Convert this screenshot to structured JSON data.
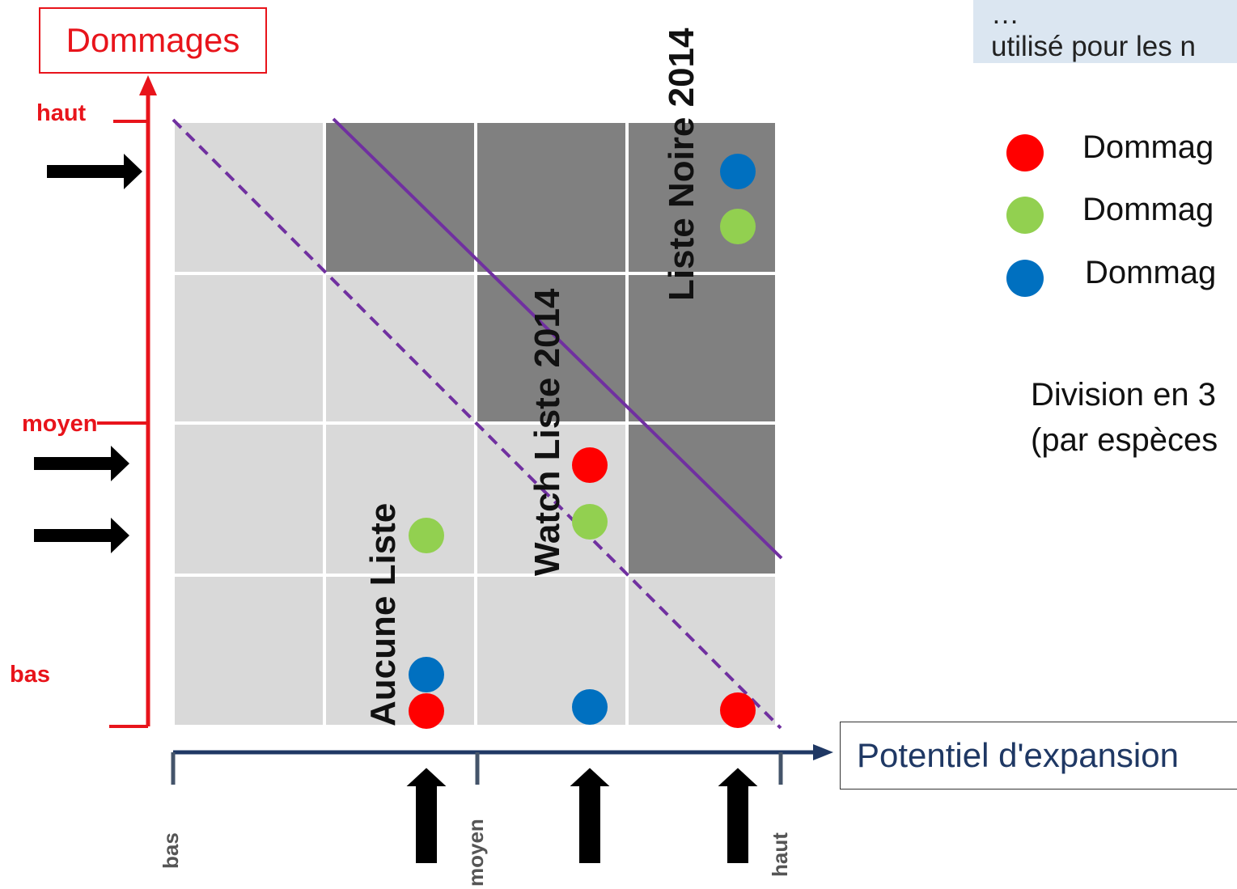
{
  "note": {
    "line1": "… ",
    "line2": "utilisé pour les n"
  },
  "axes": {
    "y_label": "Dommages",
    "x_label": "Potentiel d'expansion",
    "y_ticks": [
      "haut",
      "moyen",
      "bas"
    ],
    "x_ticks": [
      "bas",
      "moyen",
      "haut"
    ]
  },
  "zones": {
    "none": "Aucune Liste",
    "watch": "Watch Liste 2014",
    "black": "Liste Noire 2014"
  },
  "legend": [
    {
      "color": "#ff0000",
      "label": "Dommag"
    },
    {
      "color": "#92d050",
      "label": "Dommag"
    },
    {
      "color": "#0070c0",
      "label": "Dommag"
    }
  ],
  "division": {
    "line1": "Division en 3",
    "line2": "(par espèces"
  },
  "colors": {
    "light_cell": "#d9d9d9",
    "dark_cell": "#808080",
    "y_axis": "#e8141b",
    "x_axis": "#1f3864",
    "diagonal": "#7030a0"
  },
  "chart_data": {
    "type": "scatter",
    "grid": {
      "rows": 4,
      "cols": 4
    },
    "dark_cells": [
      [
        0,
        1
      ],
      [
        0,
        2
      ],
      [
        0,
        3
      ],
      [
        1,
        2
      ],
      [
        1,
        3
      ],
      [
        2,
        3
      ]
    ],
    "points": [
      {
        "series": "blue",
        "col": 3,
        "row": 0,
        "slot": 0,
        "color": "#0070c0"
      },
      {
        "series": "green",
        "col": 3,
        "row": 0,
        "slot": 1,
        "color": "#92d050"
      },
      {
        "series": "red",
        "col": 2,
        "row": 2,
        "slot": 0,
        "color": "#ff0000"
      },
      {
        "series": "green",
        "col": 2,
        "row": 2,
        "slot": 1,
        "color": "#92d050"
      },
      {
        "series": "green",
        "col": 1,
        "row": 2,
        "slot": 1,
        "color": "#92d050"
      },
      {
        "series": "blue",
        "col": 1,
        "row": 3,
        "slot": 0,
        "color": "#0070c0"
      },
      {
        "series": "red",
        "col": 1,
        "row": 3,
        "slot": 1,
        "color": "#ff0000"
      },
      {
        "series": "blue",
        "col": 2,
        "row": 3,
        "slot": 1,
        "color": "#0070c0"
      },
      {
        "series": "red",
        "col": 3,
        "row": 3,
        "slot": 1,
        "color": "#ff0000"
      }
    ],
    "y_arrow_rows": [
      0,
      2,
      2
    ],
    "x_arrow_cols": [
      1,
      2,
      3
    ]
  }
}
